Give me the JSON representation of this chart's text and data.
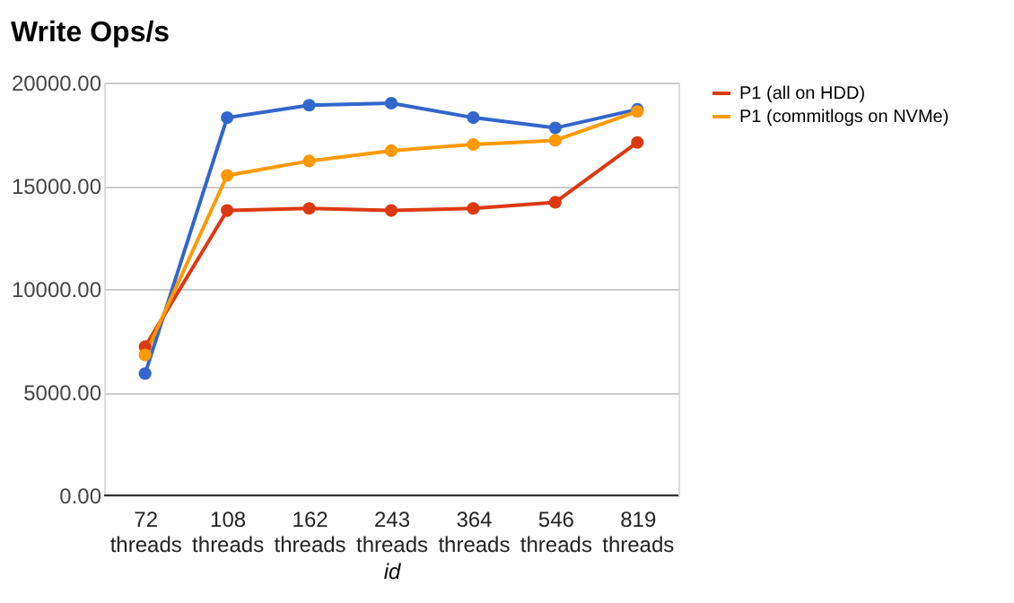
{
  "chart_data": {
    "type": "line",
    "title": "Write Ops/s",
    "xlabel": "id",
    "categories": [
      "72 threads",
      "108 threads",
      "162 threads",
      "243 threads",
      "364 threads",
      "546 threads",
      "819 threads"
    ],
    "series": [
      {
        "color": "#3366cc",
        "values": [
          5900,
          18300,
          18900,
          19000,
          18300,
          17800,
          18700
        ]
      },
      {
        "name": "P1 (all on HDD)",
        "color": "#dc3912",
        "values": [
          7200,
          13800,
          13900,
          13800,
          13900,
          14200,
          17100
        ]
      },
      {
        "name": "P1 (commitlogs on NVMe)",
        "color": "#ff9900",
        "values": [
          6800,
          15500,
          16200,
          16700,
          17000,
          17200,
          18600
        ]
      }
    ],
    "ylim": [
      0,
      20000
    ],
    "yticks": [
      {
        "value": 0,
        "label": "0.00"
      },
      {
        "value": 5000,
        "label": "5000.00"
      },
      {
        "value": 10000,
        "label": "10000.00"
      },
      {
        "value": 15000,
        "label": "15000.00"
      },
      {
        "value": 20000,
        "label": "20000.00"
      }
    ],
    "grid": "y",
    "legend": "right",
    "marker": "circle",
    "line_style": "solid"
  }
}
